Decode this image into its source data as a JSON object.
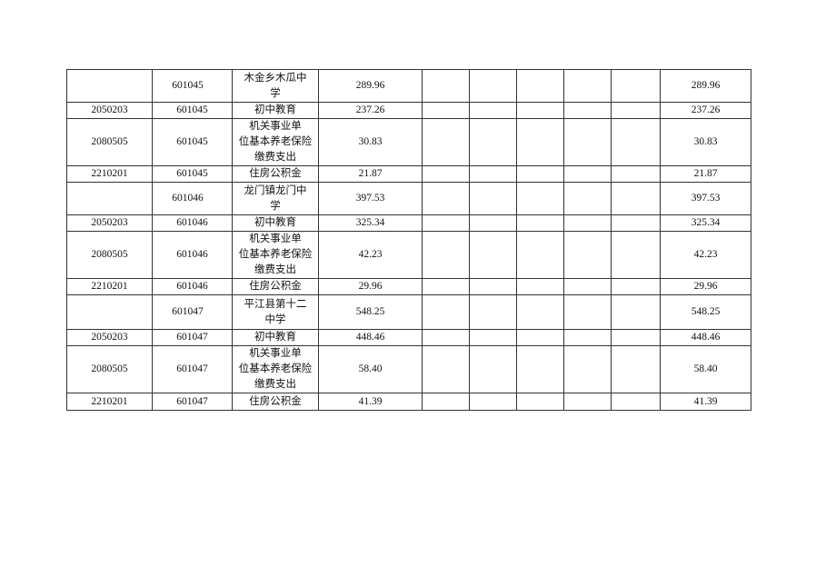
{
  "rows": [
    {
      "code": "",
      "unit": "601045",
      "name": "木金乡木瓜中\n学",
      "amount": "289.96",
      "total": "289.96"
    },
    {
      "code": "2050203",
      "unit": "601045",
      "name": "初中教育",
      "amount": "237.26",
      "total": "237.26"
    },
    {
      "code": "2080505",
      "unit": "601045",
      "name": "机关事业单\n位基本养老保险\n缴费支出",
      "amount": "30.83",
      "total": "30.83"
    },
    {
      "code": "2210201",
      "unit": "601045",
      "name": "住房公积金",
      "amount": "21.87",
      "total": "21.87"
    },
    {
      "code": "",
      "unit": "601046",
      "name": "龙门镇龙门中\n学",
      "amount": "397.53",
      "total": "397.53"
    },
    {
      "code": "2050203",
      "unit": "601046",
      "name": "初中教育",
      "amount": "325.34",
      "total": "325.34"
    },
    {
      "code": "2080505",
      "unit": "601046",
      "name": "机关事业单\n位基本养老保险\n缴费支出",
      "amount": "42.23",
      "total": "42.23"
    },
    {
      "code": "2210201",
      "unit": "601046",
      "name": "住房公积金",
      "amount": "29.96",
      "total": "29.96"
    },
    {
      "code": "",
      "unit": "601047",
      "name": "平江县第十二\n中学",
      "amount": "548.25",
      "total": "548.25"
    },
    {
      "code": "2050203",
      "unit": "601047",
      "name": "初中教育",
      "amount": "448.46",
      "total": "448.46"
    },
    {
      "code": "2080505",
      "unit": "601047",
      "name": "机关事业单\n位基本养老保险\n缴费支出",
      "amount": "58.40",
      "total": "58.40"
    },
    {
      "code": "2210201",
      "unit": "601047",
      "name": "住房公积金",
      "amount": "41.39",
      "total": "41.39"
    }
  ]
}
